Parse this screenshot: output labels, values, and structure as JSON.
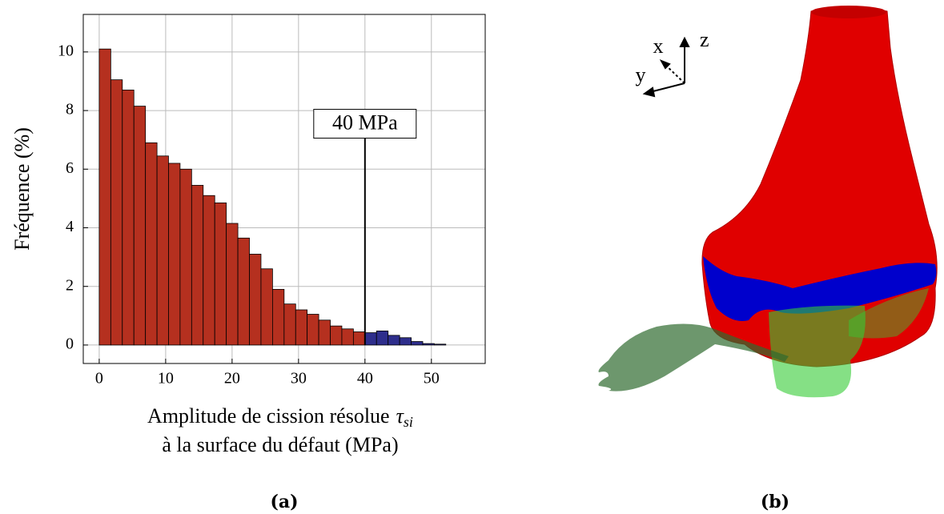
{
  "chart_data": {
    "type": "histogram",
    "xlabel": {
      "text": "Amplitude de cission résolue",
      "symbol": "τ",
      "subscript": "si",
      "line2": "à la surface du défaut (MPa)"
    },
    "ylabel": "Fréquence (%)",
    "bins": [
      0,
      1.74,
      3.48,
      5.22,
      6.96,
      8.7,
      10.43,
      12.17,
      13.91,
      15.65,
      17.39,
      19.13,
      20.87,
      22.61,
      24.35,
      26.09,
      27.83,
      29.57,
      31.3,
      33.04,
      34.78,
      36.52,
      38.26,
      40,
      41.74,
      43.48,
      45.22,
      46.96,
      48.7,
      50.43,
      52.17
    ],
    "values": [
      10.1,
      9.05,
      8.7,
      8.15,
      6.9,
      6.45,
      6.2,
      6.0,
      5.45,
      5.1,
      4.85,
      4.15,
      3.65,
      3.1,
      2.6,
      1.9,
      1.4,
      1.2,
      1.05,
      0.85,
      0.65,
      0.55,
      0.45,
      0.42,
      0.48,
      0.33,
      0.25,
      0.12,
      0.05,
      0.03
    ],
    "color": "#b5301f",
    "color_above": "#2e2e8c",
    "threshold": {
      "value": 40,
      "label": "40 MPa",
      "y": 7.55
    },
    "xlim": [
      -2.4,
      58.1
    ],
    "ylim": [
      -0.63,
      11.28
    ],
    "xticks": [
      0,
      10,
      20,
      30,
      40,
      50
    ],
    "yticks": [
      0,
      2,
      4,
      6,
      8,
      10
    ],
    "grid": true
  },
  "captions": [
    "(a)",
    "(b)"
  ],
  "view_axes": {
    "x": "x",
    "y": "y",
    "z": "z"
  }
}
